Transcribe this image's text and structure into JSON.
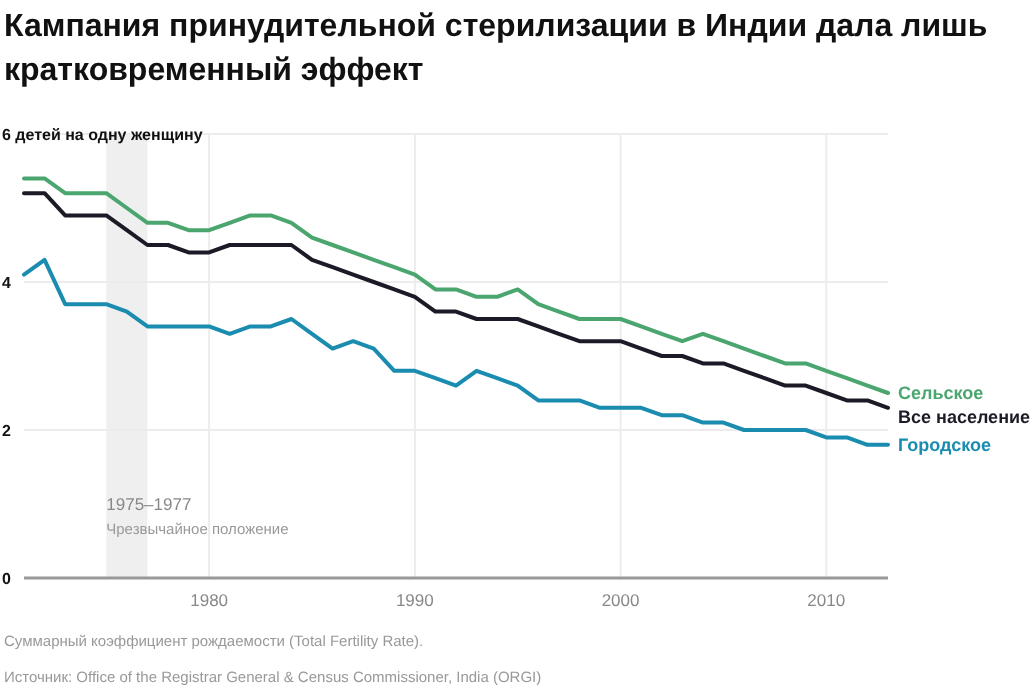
{
  "chart_data": {
    "type": "line",
    "title": "Кампания принудительной стерилизации в Индии дала лишь кратковременный эффект",
    "x": [
      1971,
      1972,
      1973,
      1974,
      1975,
      1976,
      1977,
      1978,
      1979,
      1980,
      1981,
      1982,
      1983,
      1984,
      1985,
      1986,
      1987,
      1988,
      1989,
      1990,
      1991,
      1992,
      1993,
      1994,
      1995,
      1996,
      1997,
      1998,
      1999,
      2000,
      2001,
      2002,
      2003,
      2004,
      2005,
      2006,
      2007,
      2008,
      2009,
      2010,
      2011,
      2012,
      2013
    ],
    "series": [
      {
        "name": "Сельское",
        "color": "#4aa66e",
        "values": [
          5.4,
          5.4,
          5.2,
          5.2,
          5.2,
          5.0,
          4.8,
          4.8,
          4.7,
          4.7,
          4.8,
          4.9,
          4.9,
          4.8,
          4.6,
          4.5,
          4.4,
          4.3,
          4.2,
          4.1,
          3.9,
          3.9,
          3.8,
          3.8,
          3.9,
          3.7,
          3.6,
          3.5,
          3.5,
          3.5,
          3.4,
          3.3,
          3.2,
          3.3,
          3.2,
          3.1,
          3.0,
          2.9,
          2.9,
          2.8,
          2.7,
          2.6,
          2.5
        ]
      },
      {
        "name": "Все население",
        "color": "#1b1b27",
        "values": [
          5.2,
          5.2,
          4.9,
          4.9,
          4.9,
          4.7,
          4.5,
          4.5,
          4.4,
          4.4,
          4.5,
          4.5,
          4.5,
          4.5,
          4.3,
          4.2,
          4.1,
          4.0,
          3.9,
          3.8,
          3.6,
          3.6,
          3.5,
          3.5,
          3.5,
          3.4,
          3.3,
          3.2,
          3.2,
          3.2,
          3.1,
          3.0,
          3.0,
          2.9,
          2.9,
          2.8,
          2.7,
          2.6,
          2.6,
          2.5,
          2.4,
          2.4,
          2.3
        ]
      },
      {
        "name": "Городское",
        "color": "#1a8cb0",
        "values": [
          4.1,
          4.3,
          3.7,
          3.7,
          3.7,
          3.6,
          3.4,
          3.4,
          3.4,
          3.4,
          3.3,
          3.4,
          3.4,
          3.5,
          3.3,
          3.1,
          3.2,
          3.1,
          2.8,
          2.8,
          2.7,
          2.6,
          2.8,
          2.7,
          2.6,
          2.4,
          2.4,
          2.4,
          2.3,
          2.3,
          2.3,
          2.2,
          2.2,
          2.1,
          2.1,
          2.0,
          2.0,
          2.0,
          2.0,
          1.9,
          1.9,
          1.8,
          1.8
        ]
      }
    ],
    "xlim": [
      1971,
      2013
    ],
    "xticks": [
      1980,
      1990,
      2000,
      2010
    ],
    "ylim": [
      0,
      6
    ],
    "yticks": [
      0,
      2,
      4,
      {
        "value": 6,
        "label": "6 детей на одну женщину"
      }
    ],
    "grid": true,
    "marker": "none",
    "line_style": "solid",
    "bands": [
      {
        "axis": "x",
        "from": 1975,
        "to": 1977,
        "label": "1975–1977",
        "color": "#efefef"
      }
    ],
    "annotations": [
      {
        "text": "Чрезвычайное положение",
        "x": 1975,
        "y": 0.6
      },
      "Суммарный коэффициент рождаемости (Total Fertility Rate).",
      "Источник: Office of the Registrar General & Census Commissioner, India (ORGI)"
    ]
  }
}
